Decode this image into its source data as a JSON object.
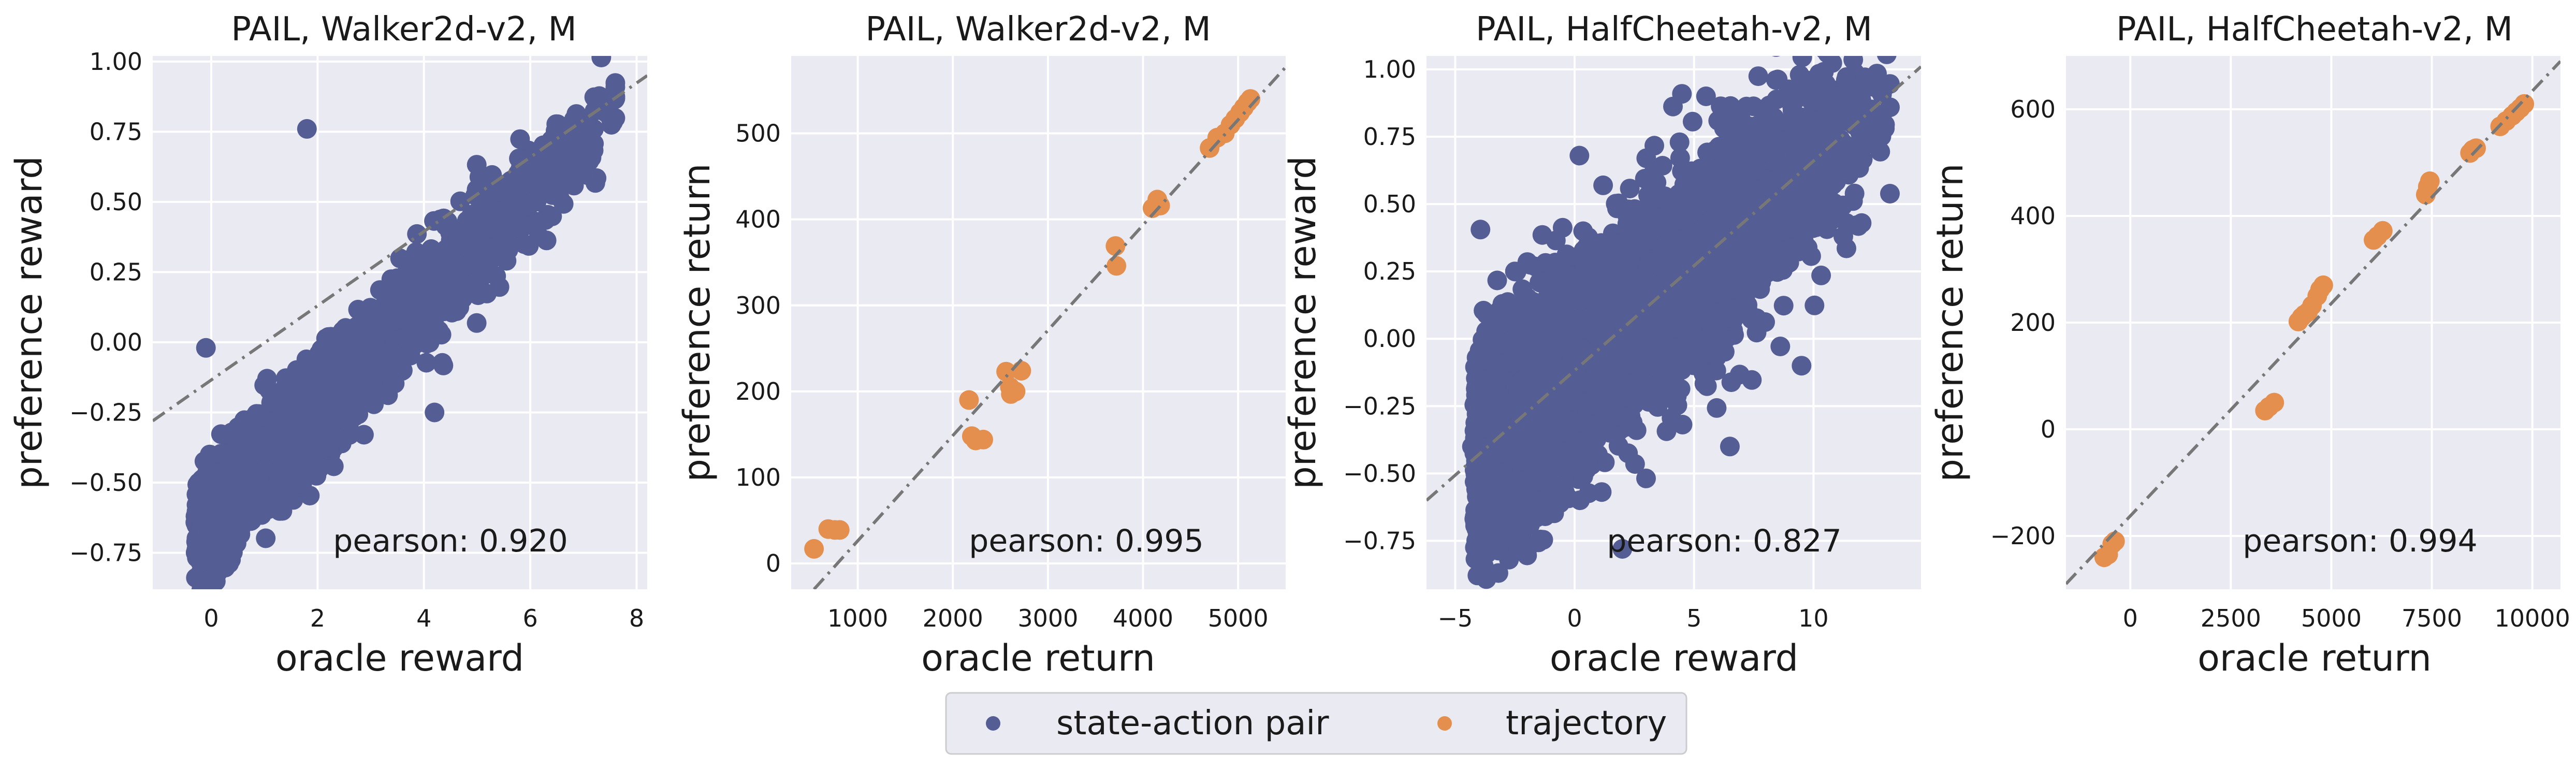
{
  "colors": {
    "state_action_pair": "#545d94",
    "trajectory": "#e58f4e",
    "plot_bg": "#eaeaf2",
    "grid": "#ffffff",
    "diagonal": "#777777",
    "text": "#1a1a1a"
  },
  "legend": {
    "placement": "bottom-center",
    "items": [
      {
        "key": "state_action_pair",
        "label": "state-action pair"
      },
      {
        "key": "trajectory",
        "label": "trajectory"
      }
    ]
  },
  "chart_data": [
    {
      "type": "scatter",
      "title": "PAIL, Walker2d-v2, M",
      "xlabel": "oracle reward",
      "ylabel": "preference reward",
      "xlim": [
        -1.1,
        8.2
      ],
      "ylim": [
        -0.88,
        1.02
      ],
      "xticks": [
        0,
        2,
        4,
        6,
        8
      ],
      "yticks": [
        -0.75,
        -0.5,
        -0.25,
        0.0,
        0.25,
        0.5,
        0.75,
        1.0
      ],
      "xtick_labels": [
        "0",
        "2",
        "4",
        "6",
        "8"
      ],
      "ytick_labels": [
        "−0.75",
        "−0.50",
        "−0.25",
        "0.00",
        "0.25",
        "0.50",
        "0.75",
        "1.00"
      ],
      "annotation": "pearson: 0.920",
      "grid": true,
      "fit_line": [
        [
          -1.1,
          -0.28
        ],
        [
          8.2,
          0.95
        ]
      ],
      "series": [
        {
          "name": "state-action pair",
          "color_key": "state_action_pair",
          "generator": {
            "n": 2600,
            "x_range": [
              -0.3,
              7.6
            ],
            "slope": 0.19,
            "intercept": -0.61,
            "spread": 0.09
          },
          "points": [
            [
              -0.1,
              -0.02
            ],
            [
              1.8,
              0.76
            ],
            [
              2.7,
              -0.15
            ],
            [
              4.2,
              -0.25
            ],
            [
              1.4,
              -0.45
            ],
            [
              0.6,
              -0.55
            ]
          ]
        }
      ]
    },
    {
      "type": "scatter",
      "title": "PAIL, Walker2d-v2, M",
      "xlabel": "oracle return",
      "ylabel": "preference return",
      "xlim": [
        300,
        5500
      ],
      "ylim": [
        -30,
        590
      ],
      "xticks": [
        1000,
        2000,
        3000,
        4000,
        5000
      ],
      "yticks": [
        0,
        100,
        200,
        300,
        400,
        500
      ],
      "xtick_labels": [
        "1000",
        "2000",
        "3000",
        "4000",
        "5000"
      ],
      "ytick_labels": [
        "0",
        "100",
        "200",
        "300",
        "400",
        "500"
      ],
      "annotation": "pearson: 0.995",
      "grid": true,
      "fit_line": [
        [
          540,
          -30
        ],
        [
          5500,
          577
        ]
      ],
      "series": [
        {
          "name": "trajectory",
          "color_key": "trajectory",
          "points": [
            [
              540,
              17
            ],
            [
              690,
              40
            ],
            [
              760,
              39
            ],
            [
              810,
              39
            ],
            [
              2170,
              190
            ],
            [
              2200,
              148
            ],
            [
              2240,
              143
            ],
            [
              2320,
              144
            ],
            [
              2560,
              223
            ],
            [
              2600,
              205
            ],
            [
              2610,
              197
            ],
            [
              2660,
              200
            ],
            [
              2720,
              224
            ],
            [
              3710,
              369
            ],
            [
              3720,
              346
            ],
            [
              4100,
              413
            ],
            [
              4150,
              423
            ],
            [
              4180,
              416
            ],
            [
              4700,
              483
            ],
            [
              4780,
              495
            ],
            [
              4860,
              500
            ],
            [
              4920,
              510
            ],
            [
              4970,
              517
            ],
            [
              5020,
              524
            ],
            [
              5060,
              530
            ],
            [
              5100,
              536
            ],
            [
              5130,
              540
            ]
          ]
        }
      ]
    },
    {
      "type": "scatter",
      "title": "PAIL, HalfCheetah-v2, M",
      "xlabel": "oracle reward",
      "ylabel": "preference reward",
      "xlim": [
        -6.2,
        14.5
      ],
      "ylim": [
        -0.93,
        1.05
      ],
      "xticks": [
        -5,
        0,
        5,
        10
      ],
      "yticks": [
        -0.75,
        -0.5,
        -0.25,
        0.0,
        0.25,
        0.5,
        0.75,
        1.0
      ],
      "xtick_labels": [
        "−5",
        "0",
        "5",
        "10"
      ],
      "ytick_labels": [
        "−0.75",
        "−0.50",
        "−0.25",
        "0.00",
        "0.25",
        "0.50",
        "0.75",
        "1.00"
      ],
      "annotation": "pearson: 0.827",
      "grid": true,
      "fit_line": [
        [
          -6.2,
          -0.6
        ],
        [
          14.5,
          1.01
        ]
      ],
      "series": [
        {
          "name": "state-action pair",
          "color_key": "state_action_pair",
          "generator": {
            "n": 5200,
            "x_range": [
              -4.2,
              13.2
            ],
            "slope": 0.078,
            "intercept": -0.12,
            "spread": 0.19
          },
          "points": [
            [
              -4.3,
              -0.4
            ],
            [
              -2.5,
              0.25
            ],
            [
              0.2,
              0.68
            ],
            [
              5.5,
              0.9
            ],
            [
              11.5,
              0.9
            ],
            [
              9.5,
              -0.1
            ],
            [
              6.5,
              -0.4
            ],
            [
              2.0,
              -0.78
            ]
          ]
        }
      ]
    },
    {
      "type": "scatter",
      "title": "PAIL, HalfCheetah-v2, M",
      "xlabel": "oracle return",
      "ylabel": "preference return",
      "xlim": [
        -1600,
        10700
      ],
      "ylim": [
        -300,
        700
      ],
      "xticks": [
        0,
        2500,
        5000,
        7500,
        10000
      ],
      "yticks": [
        -200,
        0,
        200,
        400,
        600
      ],
      "xtick_labels": [
        "0",
        "2500",
        "5000",
        "7500",
        "10000"
      ],
      "ytick_labels": [
        "−200",
        "0",
        "200",
        "400",
        "600"
      ],
      "annotation": "pearson: 0.994",
      "grid": true,
      "fit_line": [
        [
          -1600,
          -290
        ],
        [
          10700,
          690
        ]
      ],
      "series": [
        {
          "name": "trajectory",
          "color_key": "trajectory",
          "points": [
            [
              -650,
              -240
            ],
            [
              -550,
              -235
            ],
            [
              -450,
              -215
            ],
            [
              -380,
              -210
            ],
            [
              3350,
              35
            ],
            [
              3450,
              42
            ],
            [
              3580,
              50
            ],
            [
              4180,
              202
            ],
            [
              4260,
              210
            ],
            [
              4330,
              215
            ],
            [
              4420,
              220
            ],
            [
              4520,
              232
            ],
            [
              4650,
              250
            ],
            [
              4720,
              262
            ],
            [
              4800,
              270
            ],
            [
              6050,
              355
            ],
            [
              6150,
              362
            ],
            [
              6280,
              372
            ],
            [
              7350,
              440
            ],
            [
              7400,
              455
            ],
            [
              7450,
              465
            ],
            [
              8450,
              518
            ],
            [
              8520,
              524
            ],
            [
              8600,
              527
            ],
            [
              9200,
              568
            ],
            [
              9350,
              578
            ],
            [
              9500,
              588
            ],
            [
              9600,
              595
            ],
            [
              9700,
              602
            ],
            [
              9800,
              610
            ]
          ]
        }
      ]
    }
  ]
}
